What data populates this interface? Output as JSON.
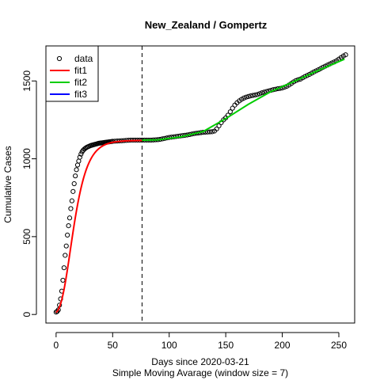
{
  "chart_data": {
    "type": "scatter",
    "title": "New_Zealand / Gompertz",
    "xlabel": "Days since 2020-03-21",
    "subtitle": "Simple Moving Avarage (window size = 7)",
    "ylabel": "Cumulative Cases",
    "xlim": [
      -9,
      264
    ],
    "ylim": [
      -55,
      1725
    ],
    "x_ticks": [
      0,
      50,
      100,
      150,
      200,
      250
    ],
    "y_ticks": [
      0,
      500,
      1000,
      1500
    ],
    "vline": 76,
    "legend_position": "top-left",
    "legend": [
      {
        "label": "data",
        "kind": "point",
        "color": "#000000"
      },
      {
        "label": "fit1",
        "kind": "line",
        "color": "#ff0000"
      },
      {
        "label": "fit2",
        "kind": "line",
        "color": "#00cd00"
      },
      {
        "label": "fit3",
        "kind": "line",
        "color": "#0000ff"
      }
    ],
    "data_points": [
      [
        0,
        15
      ],
      [
        1,
        20
      ],
      [
        2,
        30
      ],
      [
        3,
        60
      ],
      [
        4,
        100
      ],
      [
        5,
        150
      ],
      [
        6,
        220
      ],
      [
        7,
        300
      ],
      [
        8,
        380
      ],
      [
        9,
        440
      ],
      [
        10,
        510
      ],
      [
        11,
        570
      ],
      [
        12,
        620
      ],
      [
        13,
        680
      ],
      [
        14,
        730
      ],
      [
        15,
        790
      ],
      [
        16,
        840
      ],
      [
        17,
        890
      ],
      [
        18,
        930
      ],
      [
        19,
        960
      ],
      [
        20,
        985
      ],
      [
        21,
        1010
      ],
      [
        22,
        1030
      ],
      [
        23,
        1045
      ],
      [
        24,
        1055
      ],
      [
        25,
        1062
      ],
      [
        26,
        1068
      ],
      [
        27,
        1073
      ],
      [
        28,
        1077
      ],
      [
        29,
        1080
      ],
      [
        30,
        1083
      ],
      [
        31,
        1086
      ],
      [
        32,
        1088
      ],
      [
        33,
        1090
      ],
      [
        34,
        1092
      ],
      [
        35,
        1094
      ],
      [
        36,
        1096
      ],
      [
        37,
        1098
      ],
      [
        38,
        1100
      ],
      [
        39,
        1101
      ],
      [
        40,
        1102
      ],
      [
        41,
        1103
      ],
      [
        42,
        1104
      ],
      [
        43,
        1105
      ],
      [
        44,
        1106
      ],
      [
        45,
        1107
      ],
      [
        46,
        1108
      ],
      [
        47,
        1109
      ],
      [
        48,
        1110
      ],
      [
        49,
        1111
      ],
      [
        50,
        1112
      ],
      [
        52,
        1113
      ],
      [
        54,
        1114
      ],
      [
        56,
        1115
      ],
      [
        58,
        1116
      ],
      [
        60,
        1117
      ],
      [
        62,
        1118
      ],
      [
        64,
        1119
      ],
      [
        66,
        1120
      ],
      [
        68,
        1120
      ],
      [
        70,
        1120
      ],
      [
        72,
        1120
      ],
      [
        74,
        1120
      ],
      [
        76,
        1120
      ],
      [
        78,
        1120
      ],
      [
        80,
        1120
      ],
      [
        82,
        1120
      ],
      [
        84,
        1120
      ],
      [
        86,
        1121
      ],
      [
        88,
        1122
      ],
      [
        90,
        1123
      ],
      [
        92,
        1125
      ],
      [
        94,
        1128
      ],
      [
        96,
        1131
      ],
      [
        98,
        1134
      ],
      [
        100,
        1137
      ],
      [
        102,
        1139
      ],
      [
        104,
        1141
      ],
      [
        106,
        1143
      ],
      [
        108,
        1145
      ],
      [
        110,
        1147
      ],
      [
        112,
        1149
      ],
      [
        114,
        1151
      ],
      [
        116,
        1153
      ],
      [
        118,
        1156
      ],
      [
        120,
        1159
      ],
      [
        122,
        1162
      ],
      [
        124,
        1164
      ],
      [
        126,
        1166
      ],
      [
        128,
        1168
      ],
      [
        130,
        1170
      ],
      [
        132,
        1171
      ],
      [
        134,
        1172
      ],
      [
        136,
        1173
      ],
      [
        138,
        1174
      ],
      [
        140,
        1178
      ],
      [
        142,
        1192
      ],
      [
        144,
        1212
      ],
      [
        146,
        1232
      ],
      [
        148,
        1250
      ],
      [
        150,
        1263
      ],
      [
        152,
        1280
      ],
      [
        154,
        1302
      ],
      [
        156,
        1325
      ],
      [
        158,
        1345
      ],
      [
        160,
        1360
      ],
      [
        162,
        1372
      ],
      [
        164,
        1382
      ],
      [
        166,
        1390
      ],
      [
        168,
        1396
      ],
      [
        170,
        1400
      ],
      [
        172,
        1404
      ],
      [
        174,
        1407
      ],
      [
        176,
        1410
      ],
      [
        178,
        1413
      ],
      [
        180,
        1418
      ],
      [
        182,
        1424
      ],
      [
        184,
        1428
      ],
      [
        186,
        1432
      ],
      [
        188,
        1436
      ],
      [
        190,
        1440
      ],
      [
        192,
        1444
      ],
      [
        194,
        1447
      ],
      [
        196,
        1450
      ],
      [
        198,
        1452
      ],
      [
        200,
        1455
      ],
      [
        202,
        1460
      ],
      [
        204,
        1466
      ],
      [
        206,
        1474
      ],
      [
        208,
        1484
      ],
      [
        210,
        1494
      ],
      [
        212,
        1502
      ],
      [
        214,
        1508
      ],
      [
        216,
        1512
      ],
      [
        218,
        1520
      ],
      [
        220,
        1528
      ],
      [
        222,
        1535
      ],
      [
        224,
        1542
      ],
      [
        226,
        1550
      ],
      [
        228,
        1558
      ],
      [
        230,
        1565
      ],
      [
        232,
        1572
      ],
      [
        234,
        1580
      ],
      [
        236,
        1588
      ],
      [
        238,
        1595
      ],
      [
        240,
        1602
      ],
      [
        242,
        1609
      ],
      [
        244,
        1616
      ],
      [
        246,
        1622
      ],
      [
        248,
        1630
      ],
      [
        250,
        1640
      ],
      [
        252,
        1650
      ],
      [
        254,
        1660
      ],
      [
        256,
        1668
      ]
    ],
    "fit1": {
      "color": "#ff0000",
      "model": "gompertz",
      "a": 1118,
      "b": 4.5,
      "c": 0.12,
      "x_range": [
        0,
        76
      ]
    },
    "fit2": {
      "color": "#00cd00",
      "points": [
        [
          76,
          1120
        ],
        [
          90,
          1122
        ],
        [
          110,
          1140
        ],
        [
          130,
          1175
        ],
        [
          150,
          1258
        ],
        [
          170,
          1350
        ],
        [
          190,
          1432
        ],
        [
          210,
          1495
        ],
        [
          230,
          1562
        ],
        [
          255,
          1640
        ]
      ]
    }
  }
}
